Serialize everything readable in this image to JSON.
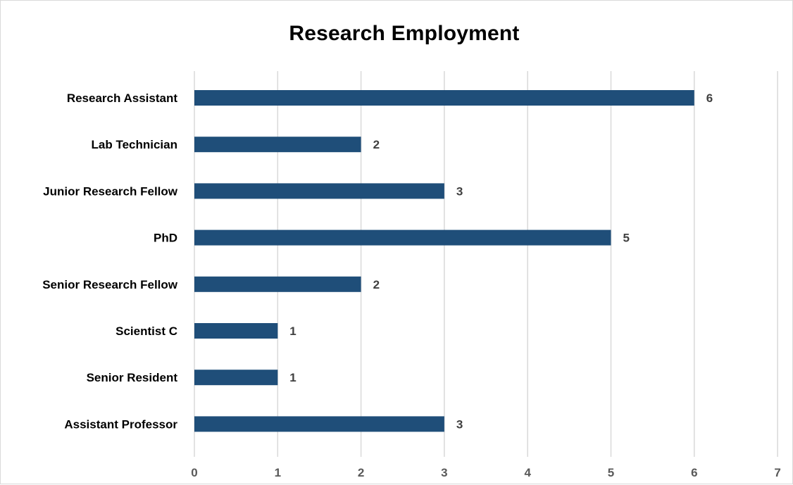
{
  "chart_data": {
    "type": "bar",
    "orientation": "horizontal",
    "title": "Research Employment",
    "categories": [
      "Research Assistant",
      "Lab Technician",
      "Junior Research Fellow",
      "PhD",
      "Senior Research Fellow",
      "Scientist C",
      "Senior Resident",
      "Assistant Professor"
    ],
    "values": [
      6,
      2,
      3,
      5,
      2,
      1,
      1,
      3
    ],
    "xlim": [
      0,
      7
    ],
    "x_ticks": [
      0,
      1,
      2,
      3,
      4,
      5,
      6,
      7
    ],
    "xlabel": "",
    "ylabel": "",
    "grid": true,
    "data_labels": true,
    "legend": "none",
    "bar_color": "#1f4e79",
    "grid_color": "#d9d9d9"
  }
}
